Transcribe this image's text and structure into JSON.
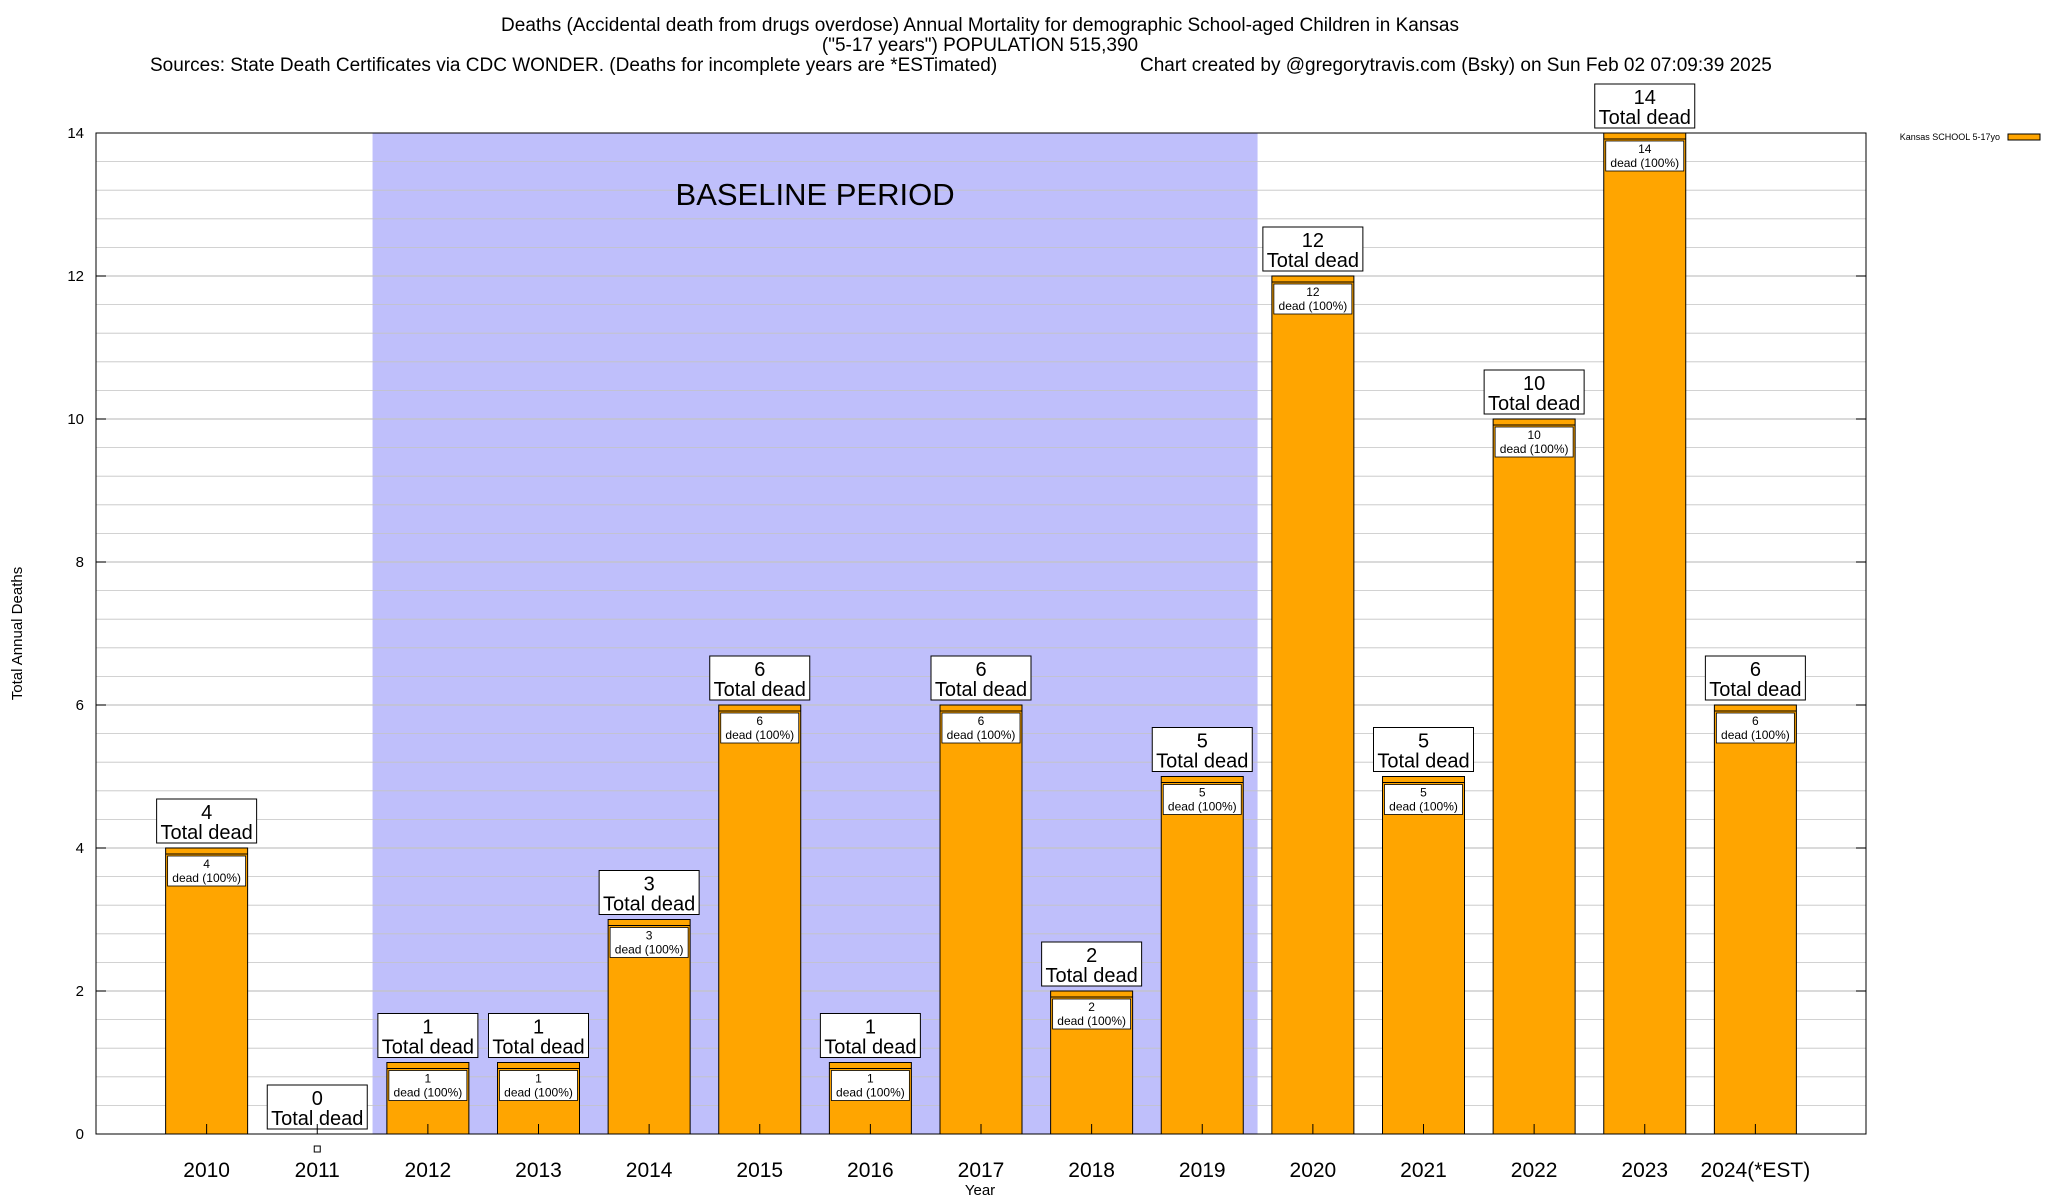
{
  "header": {
    "title_line1": "Deaths (Accidental death from drugs overdose) Annual Mortality for demographic School-aged Children in Kansas",
    "title_line2": "(\"5-17 years\") POPULATION 515,390",
    "sources": "Sources: State Death Certificates via CDC WONDER. (Deaths for incomplete years are *ESTimated)",
    "credit": "Chart created by @gregorytravis.com (Bsky) on Sun Feb 02 07:09:39 2025"
  },
  "colors": {
    "bar": "#ffa500",
    "baseline_band": "#bfbffb",
    "grid": "#c4c4c4"
  },
  "chart_data": {
    "type": "bar",
    "xlabel": "Year",
    "ylabel": "Total Annual Deaths",
    "ylim": [
      0,
      14
    ],
    "y_ticks": [
      0,
      2,
      4,
      6,
      8,
      10,
      12,
      14
    ],
    "grid": true,
    "legend": {
      "placement": "top-right",
      "label": "Kansas SCHOOL 5-17yo"
    },
    "baseline": {
      "label": "BASELINE PERIOD",
      "from": "2012",
      "to": "2019"
    },
    "total_label": "Total dead",
    "segment_label": "dead (100%)",
    "categories": [
      "2010",
      "2011",
      "2012",
      "2013",
      "2014",
      "2015",
      "2016",
      "2017",
      "2018",
      "2019",
      "2020",
      "2021",
      "2022",
      "2023",
      "2024(*EST)"
    ],
    "series": [
      {
        "name": "Kansas SCHOOL 5-17yo",
        "values": [
          4,
          0,
          1,
          1,
          3,
          6,
          1,
          6,
          2,
          5,
          12,
          5,
          10,
          14,
          6
        ]
      }
    ]
  }
}
